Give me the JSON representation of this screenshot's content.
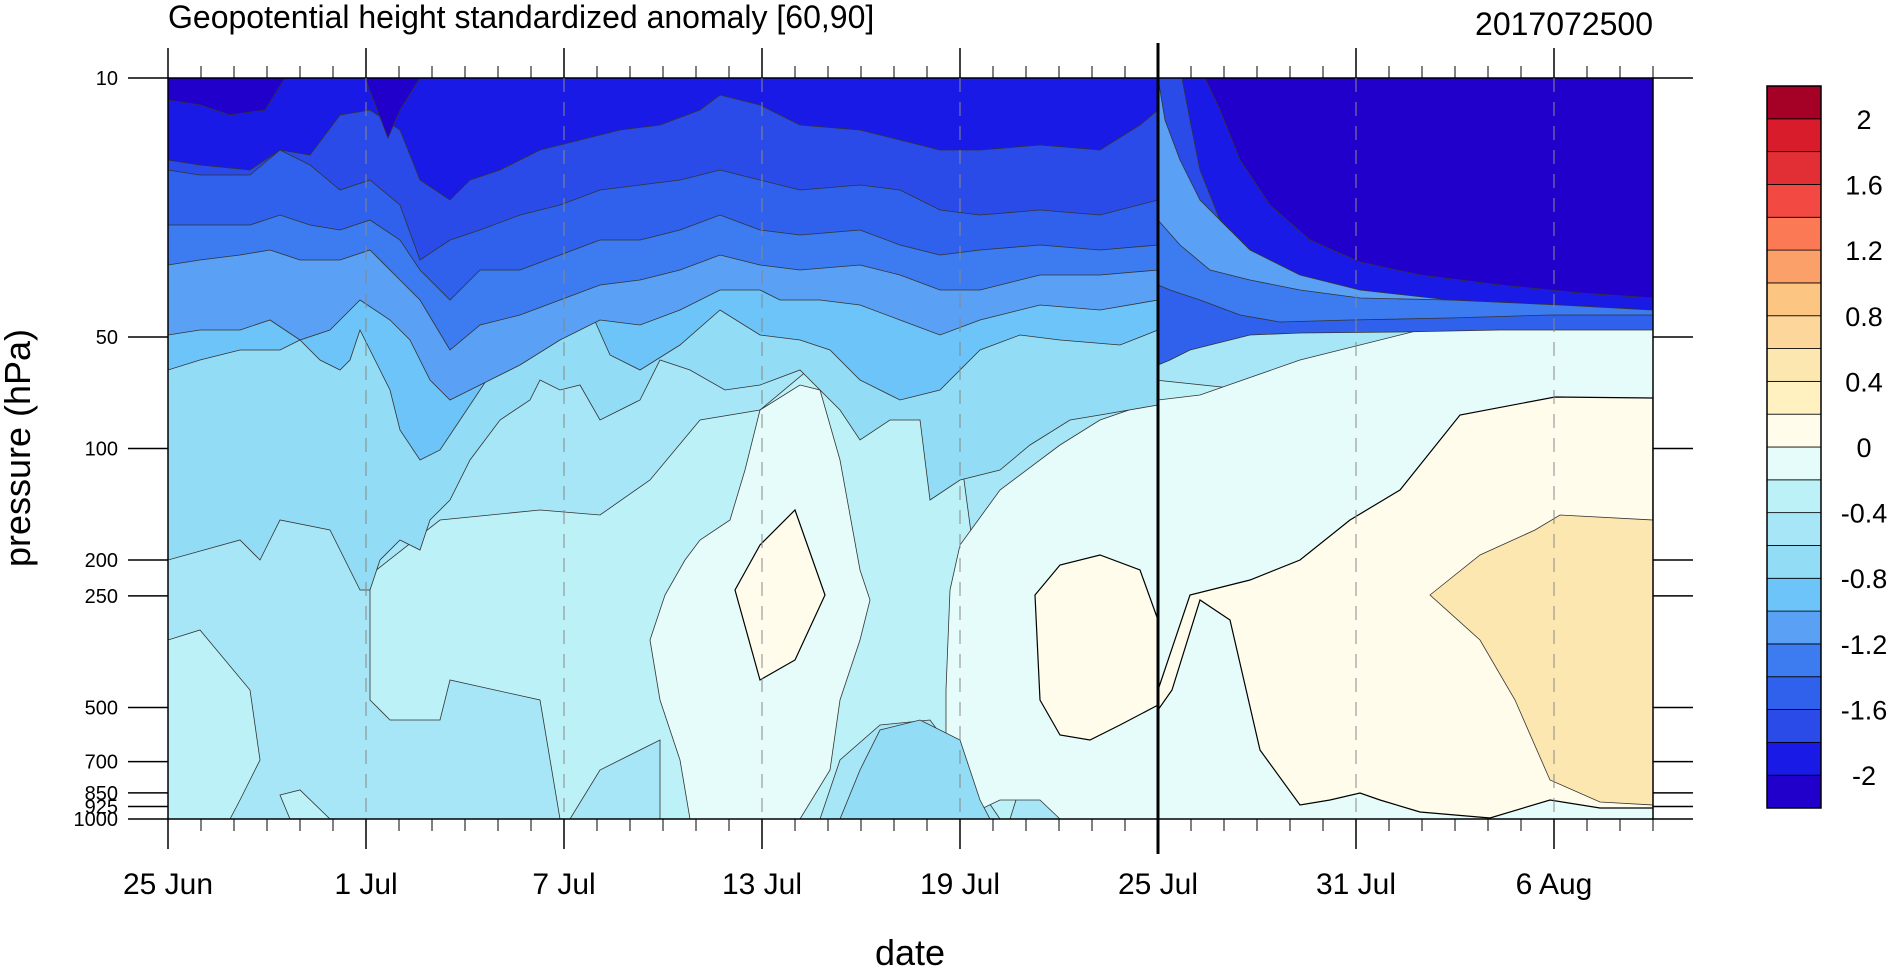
{
  "chart_data": {
    "type": "heatmap",
    "subtype": "filled-contour",
    "title": "Geopotential height standardized anomaly [60,90]",
    "subtitle_right": "2017072500",
    "xlabel": "date",
    "ylabel": "pressure (hPa)",
    "y_scale": "log",
    "y_reversed": true,
    "xlim": [
      "2017-06-25",
      "2017-08-09"
    ],
    "ylim": [
      1000,
      10
    ],
    "x_ticks": [
      {
        "date": "2017-06-25",
        "label": "25 Jun"
      },
      {
        "date": "2017-07-01",
        "label": "1 Jul"
      },
      {
        "date": "2017-07-07",
        "label": "7 Jul"
      },
      {
        "date": "2017-07-13",
        "label": "13 Jul"
      },
      {
        "date": "2017-07-19",
        "label": "19 Jul"
      },
      {
        "date": "2017-07-25",
        "label": "25 Jul"
      },
      {
        "date": "2017-07-31",
        "label": "31 Jul"
      },
      {
        "date": "2017-08-06",
        "label": "6 Aug"
      }
    ],
    "x_minor_tick_interval_days": 1,
    "analysis_line_date": "2017-07-25",
    "y_ticks": [
      {
        "value": 10,
        "label": "10"
      },
      {
        "value": 50,
        "label": "50"
      },
      {
        "value": 100,
        "label": "100"
      },
      {
        "value": 200,
        "label": "200"
      },
      {
        "value": 250,
        "label": "250"
      },
      {
        "value": 500,
        "label": "500"
      },
      {
        "value": 700,
        "label": "700"
      },
      {
        "value": 850,
        "label": "850"
      },
      {
        "value": 925,
        "label": "925"
      },
      {
        "value": 1000,
        "label": "1000"
      }
    ],
    "colorbar": {
      "levels": [
        -2.2,
        -2.0,
        -1.8,
        -1.6,
        -1.4,
        -1.2,
        -1.0,
        -0.8,
        -0.6,
        -0.4,
        -0.2,
        0,
        0.2,
        0.4,
        0.6,
        0.8,
        1.0,
        1.2,
        1.4,
        1.6,
        1.8,
        2.0
      ],
      "colors": [
        "#2200cc",
        "#1a1ae6",
        "#2a4be8",
        "#2f61ec",
        "#3c7bf0",
        "#5aa0f5",
        "#6cc4f8",
        "#92dcf5",
        "#a6e6f6",
        "#bcf1f7",
        "#e6fcfb",
        "#fffceb",
        "#fff2c0",
        "#fde7b0",
        "#fcd69a",
        "#fdc582",
        "#fca06a",
        "#fb7a55",
        "#f24a42",
        "#e22f35",
        "#d81c2c",
        "#a50026"
      ],
      "labels": [
        "2",
        "1.6",
        "1.2",
        "0.8",
        "0.4",
        "0",
        "-0.4",
        "-0.8",
        "-1.2",
        "-1.6",
        "-2"
      ]
    },
    "grid": true,
    "grid_lines_at": "major x ticks (dashed)",
    "field": {
      "pressure_levels": [
        1000,
        925,
        850,
        700,
        500,
        250,
        200,
        100,
        50,
        10
      ],
      "summary_by_period": [
        {
          "dates": [
            "2017-06-25",
            "2017-07-01"
          ],
          "values": [
            -0.5,
            -0.5,
            -0.5,
            -0.6,
            -0.5,
            -0.6,
            -0.7,
            -1.0,
            -1.4,
            -2.0
          ]
        },
        {
          "dates": [
            "2017-07-02",
            "2017-07-06"
          ],
          "values": [
            -0.6,
            -0.6,
            -0.6,
            -0.5,
            -0.4,
            -0.4,
            -0.5,
            -0.8,
            -1.2,
            -1.8
          ]
        },
        {
          "dates": [
            "2017-07-07",
            "2017-07-12"
          ],
          "values": [
            -0.4,
            -0.4,
            -0.4,
            -0.3,
            -0.3,
            -0.3,
            -0.4,
            -0.6,
            -0.9,
            -1.6
          ]
        },
        {
          "dates": [
            "2017-07-13",
            "2017-07-15"
          ],
          "values": [
            -0.3,
            -0.3,
            -0.3,
            -0.2,
            -0.1,
            0.0,
            -0.1,
            -0.2,
            -0.6,
            -1.3
          ]
        },
        {
          "dates": [
            "2017-07-16",
            "2017-07-20"
          ],
          "values": [
            -0.5,
            -0.6,
            -0.6,
            -0.5,
            -0.4,
            -0.4,
            -0.5,
            -0.6,
            -0.9,
            -1.5
          ]
        },
        {
          "dates": [
            "2017-07-21",
            "2017-07-25"
          ],
          "values": [
            -0.3,
            -0.2,
            -0.1,
            -0.1,
            0.0,
            0.0,
            -0.1,
            -0.2,
            -0.6,
            -1.4
          ]
        },
        {
          "dates": [
            "2017-07-26",
            "2017-08-09"
          ],
          "values": [
            -0.2,
            -0.1,
            0.0,
            0.2,
            0.2,
            0.3,
            0.3,
            0.0,
            -0.6,
            -2.2
          ]
        }
      ]
    }
  }
}
